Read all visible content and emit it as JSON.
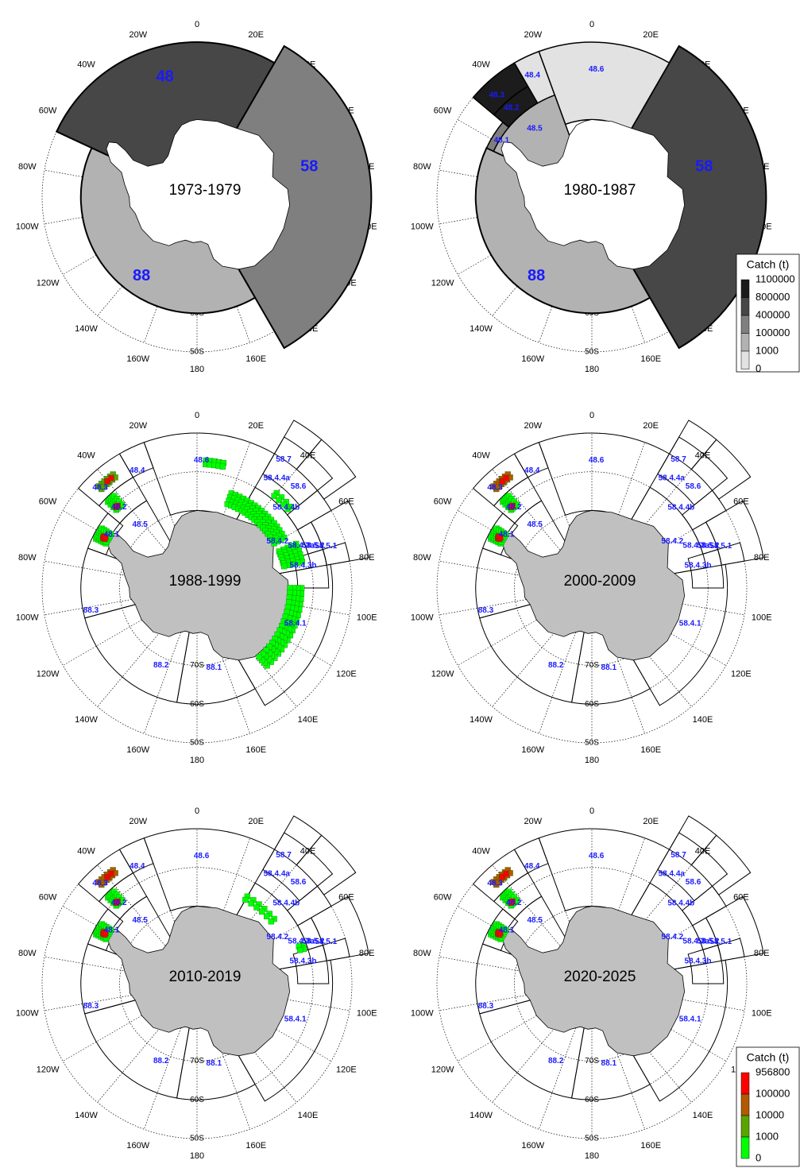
{
  "lon_labels": [
    "0",
    "20E",
    "40E",
    "60E",
    "80E",
    "100E",
    "120E",
    "140E",
    "160E",
    "180",
    "160W",
    "140W",
    "120W",
    "100W",
    "80W",
    "60W",
    "40W",
    "20W"
  ],
  "lat_labels": [
    "70S",
    "60S",
    "50S"
  ],
  "maps": [
    {
      "period": "1973-1979",
      "style": "shaded",
      "zones": [
        {
          "label": "48",
          "color": "#474747"
        },
        {
          "label": "58",
          "color": "#7f7f7f"
        },
        {
          "label": "88",
          "color": "#b2b2b2"
        }
      ]
    },
    {
      "period": "1980-1987",
      "style": "shaded",
      "zones": [
        {
          "label": "58",
          "color": "#474747"
        },
        {
          "label": "88",
          "color": "#b2b2b2"
        }
      ],
      "subareas": [
        {
          "label": "48.3",
          "color": "#1c1c1c"
        },
        {
          "label": "48.2",
          "color": "#1c1c1c"
        },
        {
          "label": "48.1",
          "color": "#7f7f7f"
        },
        {
          "label": "48.4",
          "color": "#e2e2e2"
        },
        {
          "label": "48.6",
          "color": "#e2e2e2"
        },
        {
          "label": "48.5",
          "color": "#b2b2b2"
        }
      ]
    },
    {
      "period": "1988-1999",
      "style": "cells"
    },
    {
      "period": "2000-2009",
      "style": "cells"
    },
    {
      "period": "2010-2019",
      "style": "cells"
    },
    {
      "period": "2020-2025",
      "style": "cells"
    }
  ],
  "area_labels": [
    "48.1",
    "48.2",
    "48.3",
    "48.4",
    "48.5",
    "48.6",
    "58.4.1",
    "58.4.2",
    "58.4.3a",
    "58.4.3b",
    "58.4.4a",
    "58.4.4b",
    "58.5.1",
    "58.5.2",
    "58.6",
    "58.7",
    "88.1",
    "88.2",
    "88.3"
  ],
  "legend_gray": {
    "title": "Catch (t)",
    "labels": [
      "1100000",
      "800000",
      "400000",
      "100000",
      "1000",
      "0"
    ],
    "colors": [
      "#1c1c1c",
      "#474747",
      "#7f7f7f",
      "#b2b2b2",
      "#e2e2e2"
    ]
  },
  "legend_color": {
    "title": "Catch (t)",
    "labels": [
      "956800",
      "100000",
      "10000",
      "1000",
      "0"
    ],
    "colors": [
      "#ff0000",
      "#b35900",
      "#5aa400",
      "#00ff00"
    ]
  },
  "colors": {
    "land_white": "#ffffff",
    "land_gray": "#c0c0c0",
    "label_blue": "#1a1aff"
  }
}
